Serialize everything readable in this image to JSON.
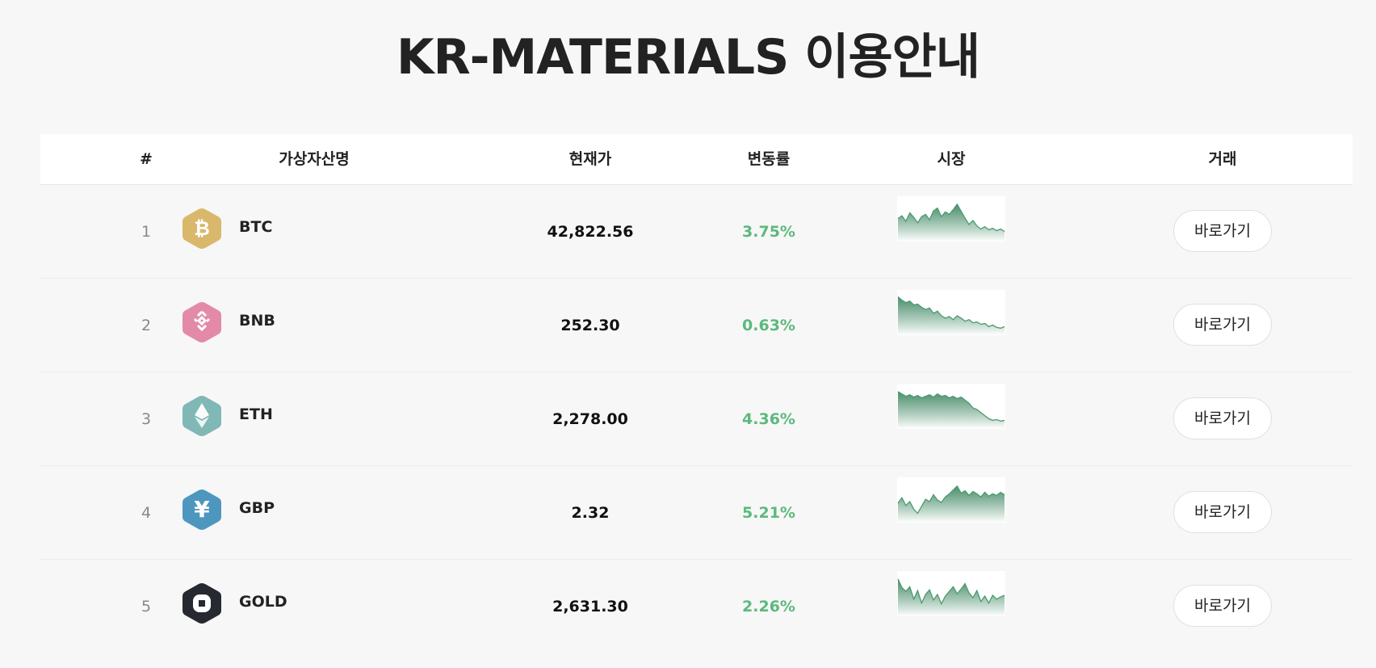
{
  "page": {
    "title": "KR-MATERIALS 이용안내"
  },
  "table": {
    "headers": [
      "#",
      "가상자산명",
      "현재가",
      "변동률",
      "시장",
      "거래"
    ],
    "rows": [
      {
        "rank": "1",
        "name": "BTC",
        "price": "42,822.56",
        "change": "3.75%",
        "icon": "bitcoin-icon",
        "icon_color": "#d9b86b",
        "action": "바로가기",
        "spark": [
          0.55,
          0.62,
          0.48,
          0.7,
          0.58,
          0.44,
          0.6,
          0.66,
          0.52,
          0.75,
          0.82,
          0.6,
          0.72,
          0.66,
          0.78,
          0.92,
          0.74,
          0.56,
          0.4,
          0.5,
          0.36,
          0.28,
          0.34,
          0.26,
          0.3,
          0.24,
          0.28,
          0.22
        ]
      },
      {
        "rank": "2",
        "name": "BNB",
        "price": "252.30",
        "change": "0.63%",
        "icon": "binance-icon",
        "icon_color": "#e38aa8",
        "action": "바로가기",
        "spark": [
          0.95,
          0.86,
          0.8,
          0.84,
          0.74,
          0.76,
          0.68,
          0.62,
          0.66,
          0.52,
          0.58,
          0.46,
          0.4,
          0.44,
          0.36,
          0.46,
          0.4,
          0.32,
          0.36,
          0.28,
          0.3,
          0.24,
          0.26,
          0.18,
          0.22,
          0.16,
          0.14,
          0.18
        ]
      },
      {
        "rank": "3",
        "name": "ETH",
        "price": "2,278.00",
        "change": "4.36%",
        "icon": "ethereum-icon",
        "icon_color": "#7fb8b4",
        "action": "바로가기",
        "spark": [
          0.92,
          0.86,
          0.8,
          0.84,
          0.78,
          0.82,
          0.76,
          0.8,
          0.84,
          0.78,
          0.86,
          0.8,
          0.82,
          0.76,
          0.8,
          0.74,
          0.78,
          0.7,
          0.62,
          0.5,
          0.46,
          0.38,
          0.3,
          0.22,
          0.18,
          0.2,
          0.16,
          0.18
        ]
      },
      {
        "rank": "4",
        "name": "GBP",
        "price": "2.32",
        "change": "5.21%",
        "icon": "yen-icon",
        "icon_color": "#4d97bf",
        "action": "바로가기",
        "spark": [
          0.46,
          0.6,
          0.4,
          0.5,
          0.3,
          0.2,
          0.38,
          0.56,
          0.5,
          0.68,
          0.54,
          0.48,
          0.62,
          0.7,
          0.8,
          0.9,
          0.72,
          0.78,
          0.66,
          0.76,
          0.7,
          0.62,
          0.74,
          0.64,
          0.7,
          0.66,
          0.74,
          0.68
        ]
      },
      {
        "rank": "5",
        "name": "GOLD",
        "price": "2,631.30",
        "change": "2.26%",
        "icon": "square-logo-icon",
        "icon_color": "#262a30",
        "action": "바로가기",
        "spark": [
          0.92,
          0.7,
          0.6,
          0.72,
          0.4,
          0.62,
          0.3,
          0.52,
          0.64,
          0.38,
          0.52,
          0.28,
          0.48,
          0.6,
          0.72,
          0.54,
          0.66,
          0.8,
          0.56,
          0.44,
          0.62,
          0.34,
          0.48,
          0.3,
          0.5,
          0.4,
          0.46,
          0.5
        ]
      }
    ]
  },
  "colors": {
    "positive": "#5cb97d",
    "spark_line": "#4a9a6e",
    "spark_fill_top": "#2e7d55"
  }
}
